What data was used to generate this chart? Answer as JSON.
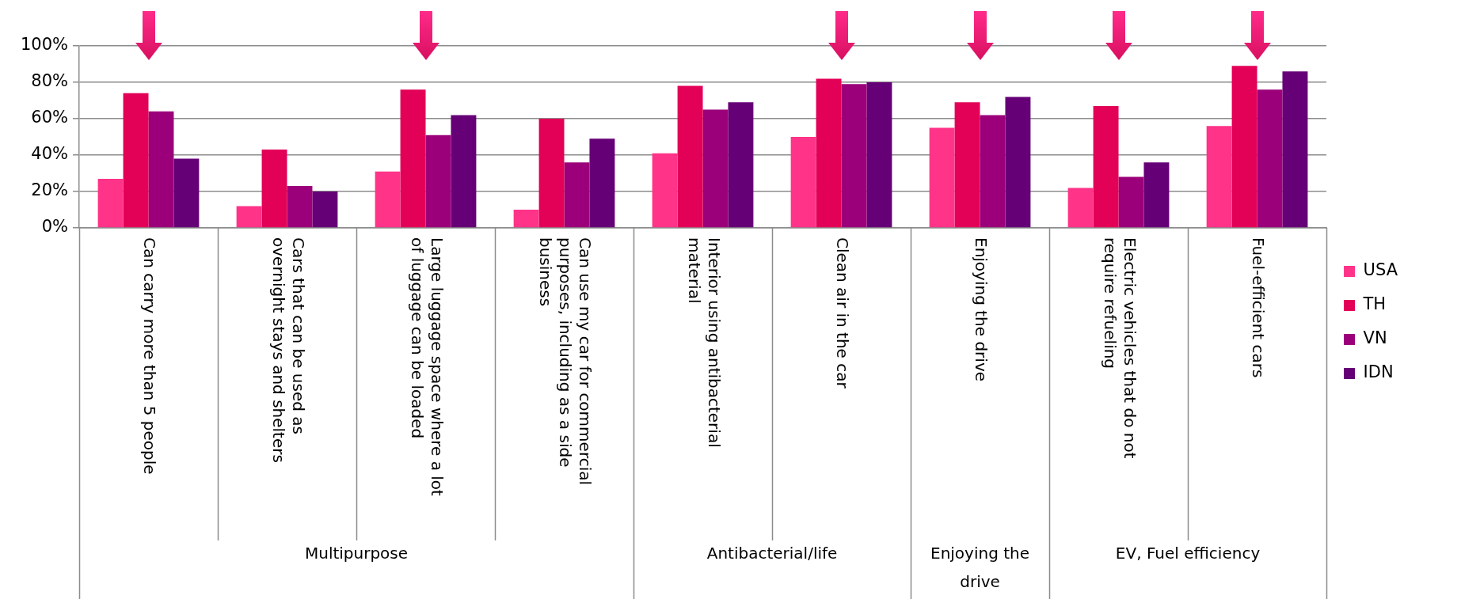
{
  "chart_data": {
    "type": "bar",
    "categories": [
      "Can carry more than 5 people",
      "Cars that can be used as overnight stays and shelters",
      "Large luggage space where a lot of luggage can be loaded",
      "Can use my car for commercial purposes, including as a side business",
      "Interior using antibacterial material",
      "Clean air in the car",
      "Enjoying the drive",
      "Electric vehicles that do not require refueling",
      "Fuel-efficient cars"
    ],
    "series": [
      {
        "name": "USA",
        "color": "#ff3388",
        "values": [
          27,
          12,
          31,
          10,
          41,
          50,
          55,
          22,
          56
        ]
      },
      {
        "name": "TH",
        "color": "#e30057",
        "values": [
          74,
          43,
          76,
          60,
          78,
          82,
          69,
          67,
          89
        ]
      },
      {
        "name": "VN",
        "color": "#9b007a",
        "values": [
          64,
          23,
          51,
          36,
          65,
          79,
          62,
          28,
          76
        ]
      },
      {
        "name": "IDN",
        "color": "#660077",
        "values": [
          38,
          20,
          62,
          49,
          69,
          80,
          72,
          36,
          86
        ]
      }
    ],
    "ylim": [
      0,
      100
    ],
    "yticks": [
      {
        "value": 0,
        "label": "0%"
      },
      {
        "value": 20,
        "label": "20%"
      },
      {
        "value": 40,
        "label": "40%"
      },
      {
        "value": 60,
        "label": "60%"
      },
      {
        "value": 80,
        "label": "80%"
      },
      {
        "value": 100,
        "label": "100%"
      }
    ],
    "grid": "y",
    "legend": "right",
    "annotations": [
      "Multipurpose",
      "Antibacterial/life",
      "Enjoying the drive",
      "EV, Fuel efficiency"
    ]
  }
}
